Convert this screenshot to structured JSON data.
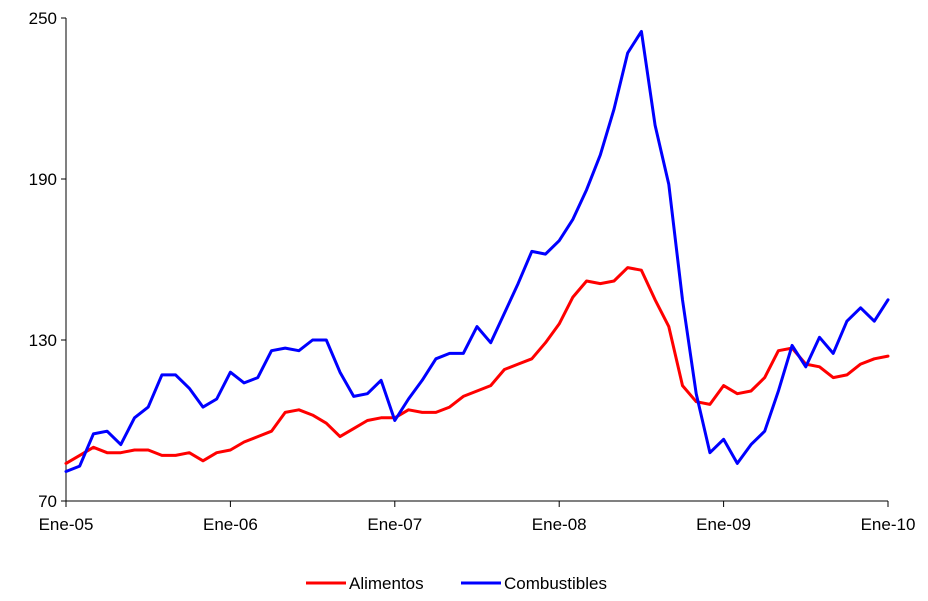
{
  "chart_data": {
    "type": "line",
    "title": "",
    "xlabel": "",
    "ylabel": "",
    "ylim": [
      70,
      250
    ],
    "yticks": [
      "70",
      "130",
      "190",
      "250"
    ],
    "xtick_labels": [
      "Ene-05",
      "Ene-06",
      "Ene-07",
      "Ene-08",
      "Ene-09",
      "Ene-10"
    ],
    "xtick_index": [
      0,
      12,
      24,
      36,
      48,
      60
    ],
    "grid": false,
    "legend_position": "bottom",
    "x": [
      "Ene-05",
      "Feb-05",
      "Mar-05",
      "Abr-05",
      "May-05",
      "Jun-05",
      "Jul-05",
      "Ago-05",
      "Sep-05",
      "Oct-05",
      "Nov-05",
      "Dic-05",
      "Ene-06",
      "Feb-06",
      "Mar-06",
      "Abr-06",
      "May-06",
      "Jun-06",
      "Jul-06",
      "Ago-06",
      "Sep-06",
      "Oct-06",
      "Nov-06",
      "Dic-06",
      "Ene-07",
      "Feb-07",
      "Mar-07",
      "Abr-07",
      "May-07",
      "Jun-07",
      "Jul-07",
      "Ago-07",
      "Sep-07",
      "Oct-07",
      "Nov-07",
      "Dic-07",
      "Ene-08",
      "Feb-08",
      "Mar-08",
      "Abr-08",
      "May-08",
      "Jun-08",
      "Jul-08",
      "Ago-08",
      "Sep-08",
      "Oct-08",
      "Nov-08",
      "Dic-08",
      "Ene-09",
      "Feb-09",
      "Mar-09",
      "Abr-09",
      "May-09",
      "Jun-09",
      "Jul-09",
      "Ago-09",
      "Sep-09",
      "Oct-09",
      "Nov-09",
      "Dic-09",
      "Ene-10"
    ],
    "series": [
      {
        "name": "Alimentos",
        "color": "#ff0000",
        "values": [
          84,
          87,
          90,
          88,
          88,
          89,
          89,
          87,
          87,
          88,
          85,
          88,
          89,
          92,
          94,
          96,
          103,
          104,
          102,
          99,
          94,
          97,
          100,
          101,
          101,
          104,
          103,
          103,
          105,
          109,
          111,
          113,
          119,
          121,
          123,
          129,
          136,
          146,
          152,
          151,
          152,
          157,
          156,
          145,
          135,
          113,
          107,
          106,
          113,
          110,
          111,
          116,
          126,
          127,
          121,
          120,
          116,
          117,
          121,
          123,
          124
        ]
      },
      {
        "name": "Combustibles",
        "color": "#0000ff",
        "values": [
          81,
          83,
          95,
          96,
          91,
          101,
          105,
          117,
          117,
          112,
          105,
          108,
          118,
          114,
          116,
          126,
          127,
          126,
          130,
          130,
          118,
          109,
          110,
          115,
          100,
          108,
          115,
          123,
          125,
          125,
          135,
          129,
          140,
          151,
          163,
          162,
          167,
          175,
          186,
          199,
          216,
          237,
          245,
          210,
          188,
          145,
          110,
          88,
          93,
          84,
          91,
          96,
          111,
          128,
          120,
          131,
          125,
          137,
          142,
          137,
          145
        ]
      }
    ]
  }
}
